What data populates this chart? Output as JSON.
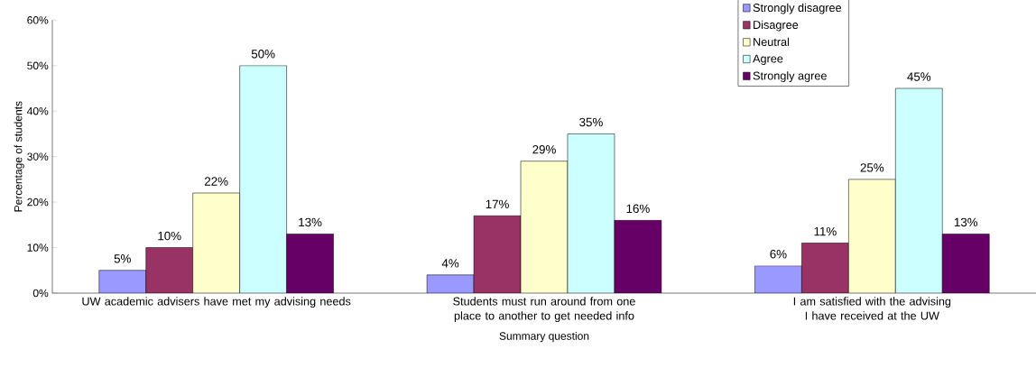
{
  "chart_data": {
    "type": "bar",
    "xlabel": "Summary question",
    "ylabel": "Percentage of students",
    "categories": [
      "UW academic advisers have met my advising needs",
      "Students must run around from one place to another to get needed info",
      "I am satisfied with the advising I have received at the UW"
    ],
    "series": [
      {
        "name": "Strongly disagree",
        "color": "#9999ff",
        "values": [
          5,
          4,
          6
        ],
        "value_labels": [
          "5%",
          "4%",
          "6%"
        ]
      },
      {
        "name": "Disagree",
        "color": "#993366",
        "values": [
          10,
          17,
          11
        ],
        "value_labels": [
          "10%",
          "17%",
          "11%"
        ]
      },
      {
        "name": "Neutral",
        "color": "#ffffcc",
        "values": [
          22,
          29,
          25
        ],
        "value_labels": [
          "22%",
          "29%",
          "25%"
        ]
      },
      {
        "name": "Agree",
        "color": "#ccffff",
        "values": [
          50,
          35,
          45
        ],
        "value_labels": [
          "50%",
          "35%",
          "45%"
        ]
      },
      {
        "name": "Strongly agree",
        "color": "#660066",
        "values": [
          13,
          16,
          13
        ],
        "value_labels": [
          "13%",
          "16%",
          "13%"
        ]
      }
    ],
    "ylim": [
      0,
      60
    ],
    "yticks": [
      {
        "value": 0,
        "label": "0%"
      },
      {
        "value": 10,
        "label": "10%"
      },
      {
        "value": 20,
        "label": "20%"
      },
      {
        "value": 30,
        "label": "30%"
      },
      {
        "value": 40,
        "label": "40%"
      },
      {
        "value": 50,
        "label": "50%"
      },
      {
        "value": 60,
        "label": "60%"
      }
    ],
    "grid": false,
    "legend": "top right"
  }
}
